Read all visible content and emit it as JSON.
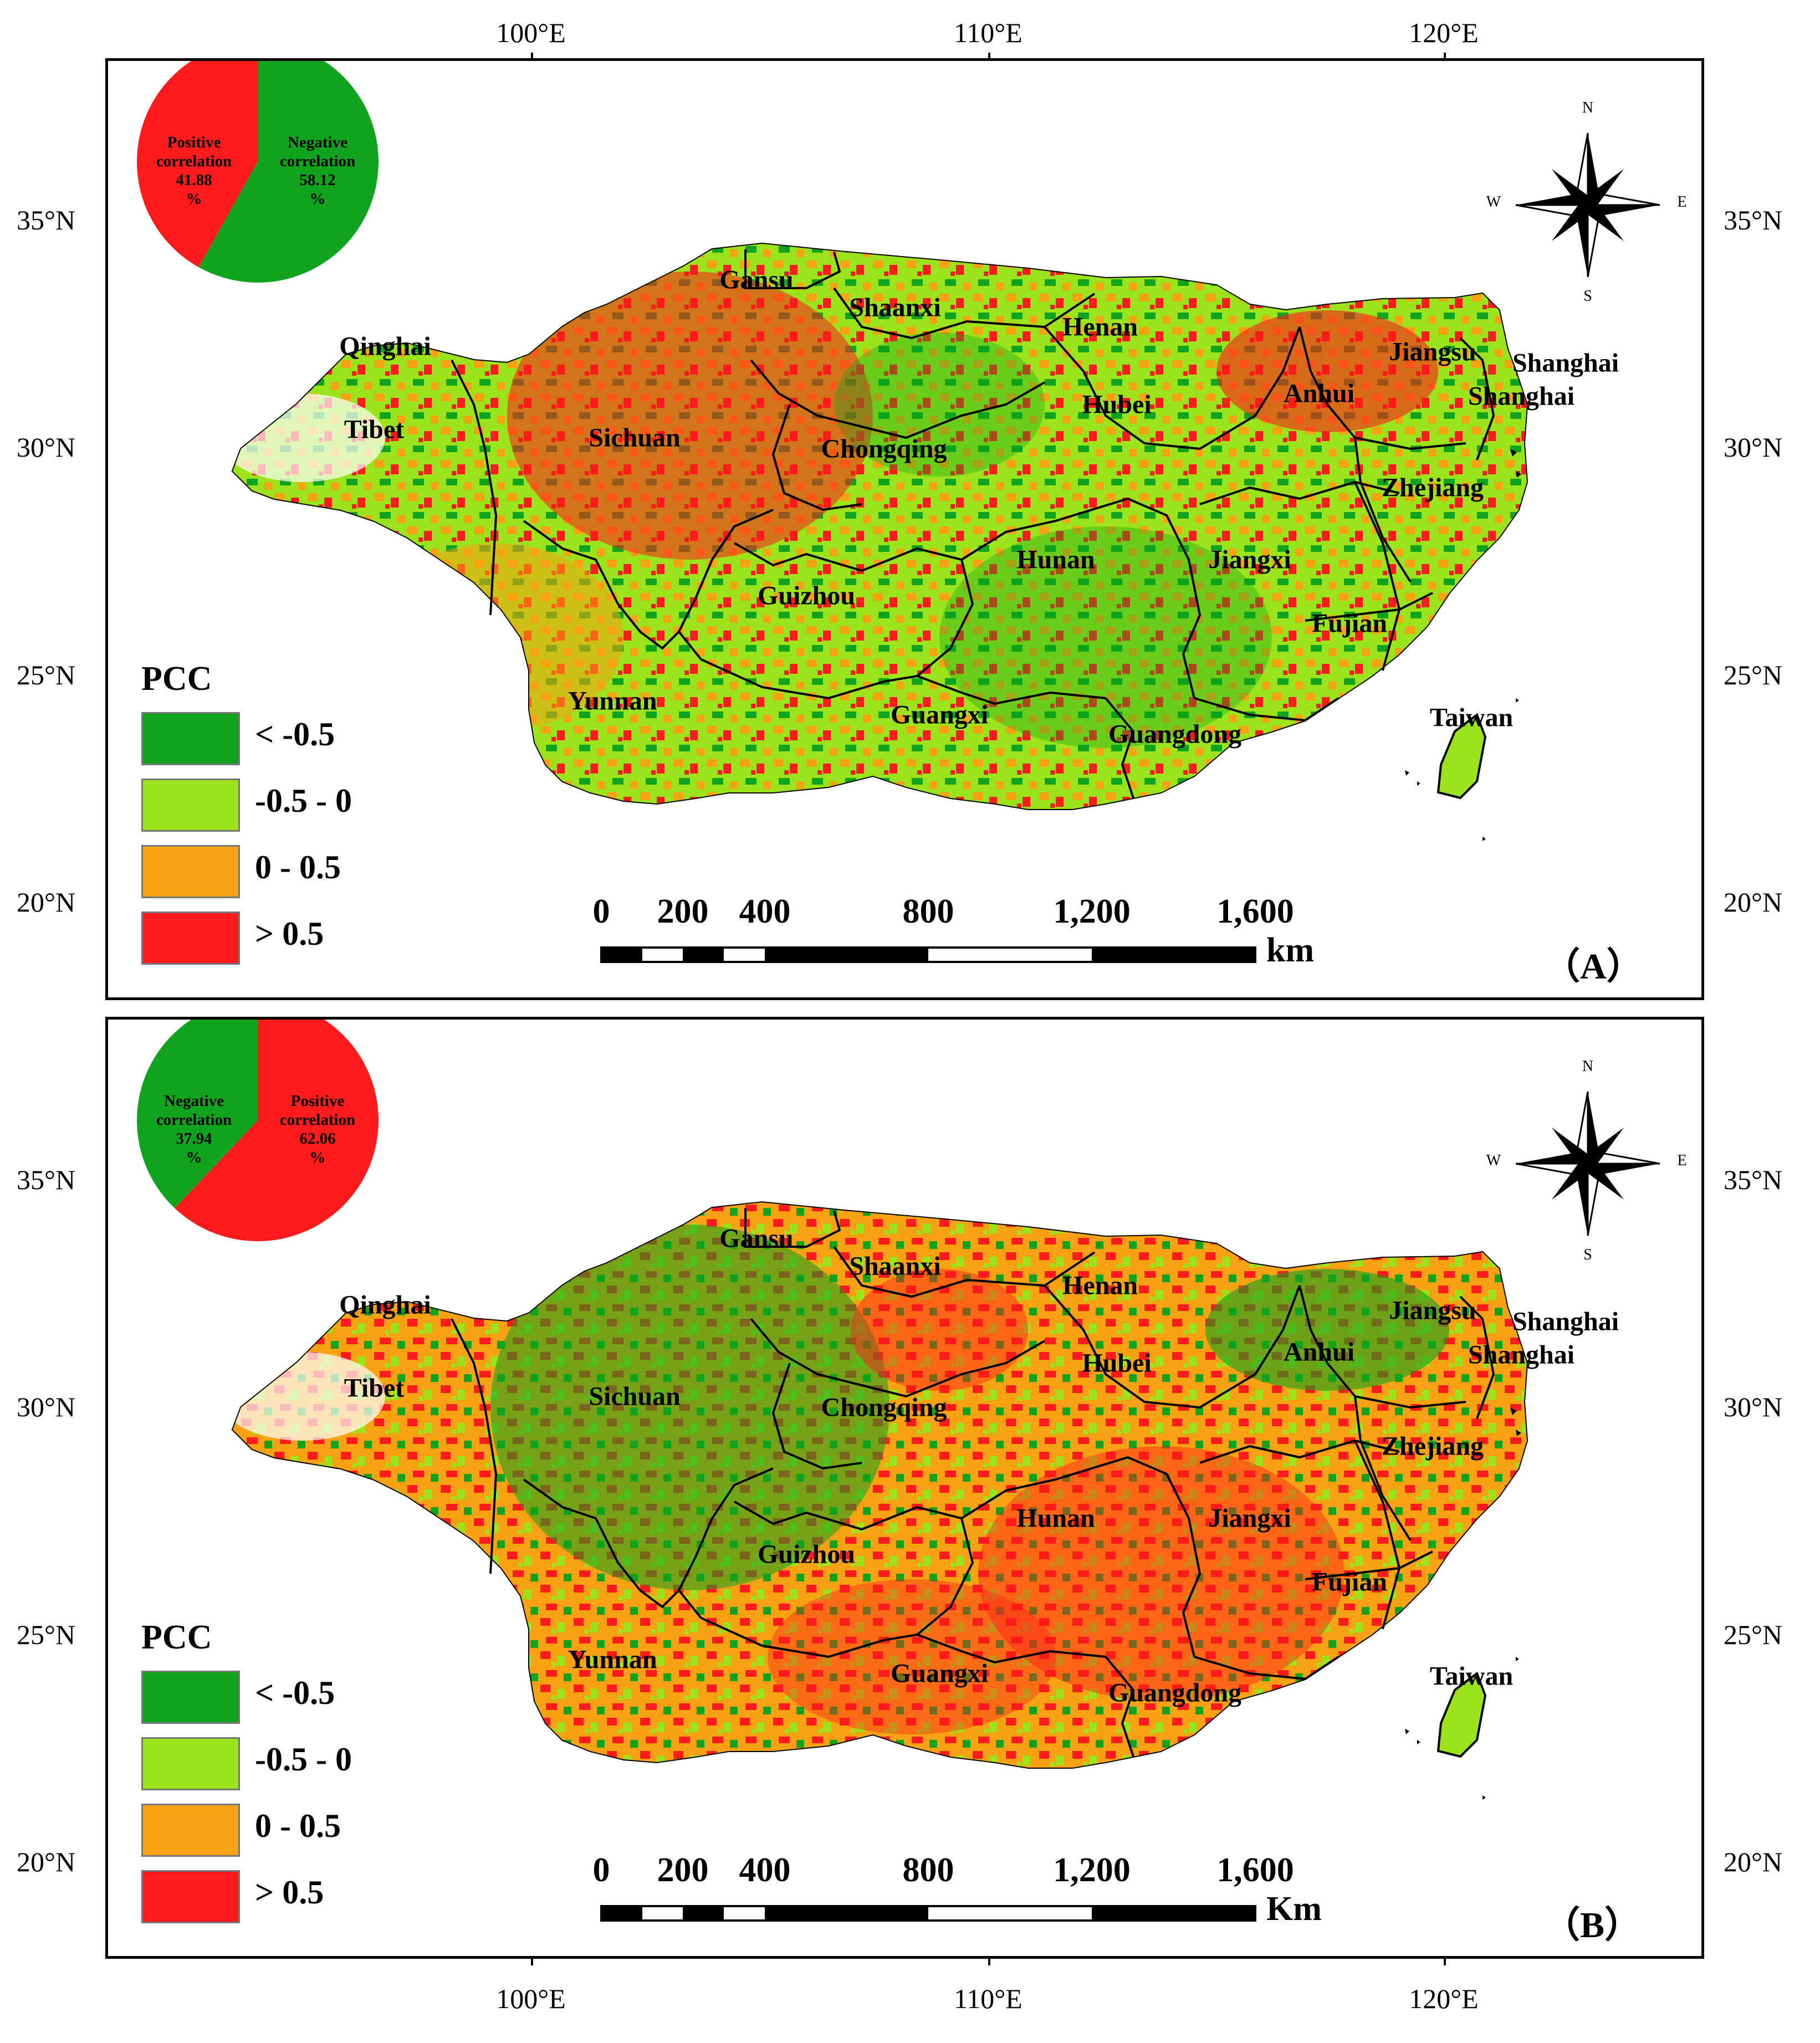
{
  "axes": {
    "longitude_labels": [
      "100°E",
      "110°E",
      "120°E"
    ],
    "latitude_labels": [
      "35°N",
      "30°N",
      "25°N",
      "20°N"
    ]
  },
  "colors": {
    "lt_neg_0_5": "#0fa31e",
    "neg_0_5_to_0": "#9be31a",
    "0_to_0_5": "#f7a212",
    "gt_0_5": "#ff1b1b"
  },
  "panels": [
    {
      "panel_label": "（A）",
      "pie": {
        "slices": [
          {
            "label_line1": "Positive",
            "label_line2": "correlation",
            "value": "41.88",
            "unit": "%",
            "percent": 41.88,
            "color": "#ff1b1b"
          },
          {
            "label_line1": "Negative",
            "label_line2": "correlation",
            "value": "58.12",
            "unit": "%",
            "percent": 58.12,
            "color": "#0fa31e"
          }
        ]
      },
      "legend": {
        "title": "PCC",
        "items": [
          {
            "label": "< -0.5",
            "color": "#0fa31e"
          },
          {
            "label": "-0.5 - 0",
            "color": "#9be31a"
          },
          {
            "label": "0 - 0.5",
            "color": "#f7a212"
          },
          {
            "label": "> 0.5",
            "color": "#ff1b1b"
          }
        ]
      },
      "scale_bar": {
        "ticks": [
          "0",
          "200",
          "400",
          "800",
          "1,200",
          "1,600"
        ],
        "unit": "km"
      },
      "compass": {
        "n": "N",
        "s": "S",
        "e": "E",
        "w": "W"
      },
      "provinces": [
        "Gansu",
        "Shaanxi",
        "Henan",
        "Qinghai",
        "Jiangsu",
        "Shanghai",
        "Shanghai",
        "Tibet",
        "Sichuan",
        "Hubei",
        "Anhui",
        "Chongqing",
        "Zhejiang",
        "Hunan",
        "Jiangxi",
        "Guizhou",
        "Fujian",
        "Yunnan",
        "Guangxi",
        "Guangdong",
        "Taiwan"
      ]
    },
    {
      "panel_label": "（B）",
      "pie": {
        "slices": [
          {
            "label_line1": "Negative",
            "label_line2": "correlation",
            "value": "37.94",
            "unit": "%",
            "percent": 37.94,
            "color": "#0fa31e"
          },
          {
            "label_line1": "Positive",
            "label_line2": "correlation",
            "value": "62.06",
            "unit": "%",
            "percent": 62.06,
            "color": "#ff1b1b"
          }
        ]
      },
      "legend": {
        "title": "PCC",
        "items": [
          {
            "label": "< -0.5",
            "color": "#0fa31e"
          },
          {
            "label": "-0.5 - 0",
            "color": "#9be31a"
          },
          {
            "label": "0 - 0.5",
            "color": "#f7a212"
          },
          {
            "label": "> 0.5",
            "color": "#ff1b1b"
          }
        ]
      },
      "scale_bar": {
        "ticks": [
          "0",
          "200",
          "400",
          "800",
          "1,200",
          "1,600"
        ],
        "unit": "Km"
      },
      "compass": {
        "n": "N",
        "s": "S",
        "e": "E",
        "w": "W"
      },
      "provinces": [
        "Gansu",
        "Shaanxi",
        "Henan",
        "Qinghai",
        "Jiangsu",
        "Shanghai",
        "Shanghai",
        "Tibet",
        "Sichuan",
        "Hubei",
        "Anhui",
        "Chongqing",
        "Zhejiang",
        "Hunan",
        "Jiangxi",
        "Guizhou",
        "Fujian",
        "Yunnan",
        "Guangxi",
        "Guangdong",
        "Taiwan"
      ]
    }
  ]
}
